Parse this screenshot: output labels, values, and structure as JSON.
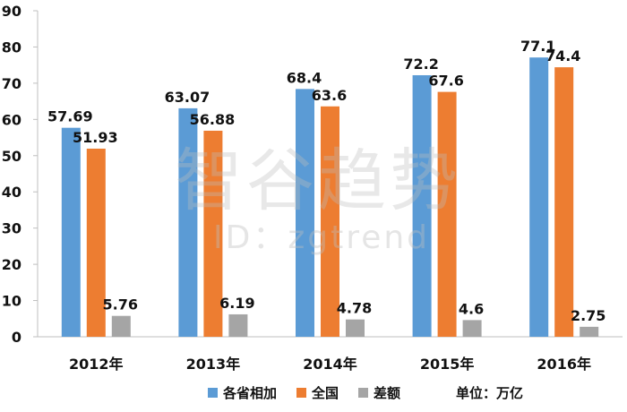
{
  "chart_data": {
    "type": "bar",
    "categories": [
      "2012年",
      "2013年",
      "2014年",
      "2015年",
      "2016年"
    ],
    "series": [
      {
        "name": "各省相加",
        "color": "#5b9bd5",
        "values": [
          57.69,
          63.07,
          68.4,
          72.2,
          77.1
        ],
        "labels": [
          "57.69",
          "63.07",
          "68.4",
          "72.2",
          "77.1"
        ]
      },
      {
        "name": "全国",
        "color": "#ed7d31",
        "values": [
          51.93,
          56.88,
          63.6,
          67.6,
          74.4
        ],
        "labels": [
          "51.93",
          "56.88",
          "63.6",
          "67.6",
          "74.4"
        ]
      },
      {
        "name": "差额",
        "color": "#a5a5a5",
        "values": [
          5.76,
          6.19,
          4.78,
          4.6,
          2.75
        ],
        "labels": [
          "5.76",
          "6.19",
          "4.78",
          "4.6",
          "2.75"
        ]
      }
    ],
    "ylim": [
      0,
      90
    ],
    "yticks": [
      0,
      10,
      20,
      30,
      40,
      50,
      60,
      70,
      80,
      90
    ],
    "grid": false,
    "legend_position": "bottom",
    "unit_label": "单位：万亿"
  },
  "watermark": {
    "text": "智谷趋势",
    "id_text": "ID：zgtrend"
  }
}
